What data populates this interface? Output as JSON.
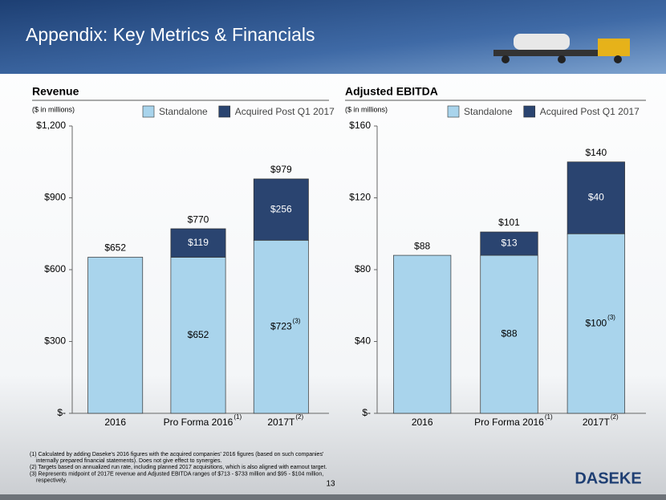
{
  "header": {
    "title": "Appendix: Key Metrics & Financials"
  },
  "footer": {
    "page_number": "13",
    "logo": "DASEKE",
    "notes": [
      "(1) Calculated by adding Daseke's 2016 figures with the acquired companies' 2016 figures (based on such companies'",
      "internally prepared financial statements). Does not give effect to synergies.",
      "(2) Targets based on annualized run rate, including planned 2017 acquisitions, which is also aligned with earnout target.",
      "(3) Represents midpoint of 2017E revenue and Adjusted EBITDA ranges of $713 - $733 million and $95 - $104 million,",
      "respectively."
    ]
  },
  "chart_data": [
    {
      "type": "stacked_bar",
      "title": "Revenue",
      "subtitle": "($ in millions)",
      "categories": [
        "2016",
        "Pro Forma 2016",
        "2017T"
      ],
      "category_notes": [
        null,
        "(1)",
        "(2)"
      ],
      "series": [
        {
          "name": "Standalone",
          "color": "#a9d4ec",
          "values": [
            652,
            652,
            723
          ],
          "value_labels": [
            null,
            "$652",
            "$723"
          ],
          "value_notes": [
            null,
            null,
            "(3)"
          ]
        },
        {
          "name": "Acquired Post Q1 2017",
          "color": "#2a4470",
          "values": [
            null,
            119,
            256
          ],
          "value_labels": [
            null,
            "$119",
            "$256"
          ]
        }
      ],
      "totals": [
        652,
        770,
        979
      ],
      "total_labels": [
        "$652",
        "$770",
        "$979"
      ],
      "ylim": [
        0,
        1200
      ],
      "yticks": [
        {
          "value": 0,
          "label": "$-"
        },
        {
          "value": 300,
          "label": "$300"
        },
        {
          "value": 600,
          "label": "$600"
        },
        {
          "value": 900,
          "label": "$900"
        },
        {
          "value": 1200,
          "label": "$1,200"
        }
      ],
      "legend": "top-right",
      "grid": false
    },
    {
      "type": "stacked_bar",
      "title": "Adjusted EBITDA",
      "subtitle": "($ in millions)",
      "categories": [
        "2016",
        "Pro Forma 2016",
        "2017T"
      ],
      "category_notes": [
        null,
        "(1)",
        "(2)"
      ],
      "series": [
        {
          "name": "Standalone",
          "color": "#a9d4ec",
          "values": [
            88,
            88,
            100
          ],
          "value_labels": [
            null,
            "$88",
            "$100"
          ],
          "value_notes": [
            null,
            null,
            "(3)"
          ]
        },
        {
          "name": "Acquired Post Q1 2017",
          "color": "#2a4470",
          "values": [
            null,
            13,
            40
          ],
          "value_labels": [
            null,
            "$13",
            "$40"
          ]
        }
      ],
      "totals": [
        88,
        101,
        140
      ],
      "total_labels": [
        "$88",
        "$101",
        "$140"
      ],
      "ylim": [
        0,
        160
      ],
      "yticks": [
        {
          "value": 0,
          "label": "$-"
        },
        {
          "value": 40,
          "label": "$40"
        },
        {
          "value": 80,
          "label": "$80"
        },
        {
          "value": 120,
          "label": "$120"
        },
        {
          "value": 160,
          "label": "$160"
        }
      ],
      "legend": "top-right",
      "grid": false
    }
  ]
}
